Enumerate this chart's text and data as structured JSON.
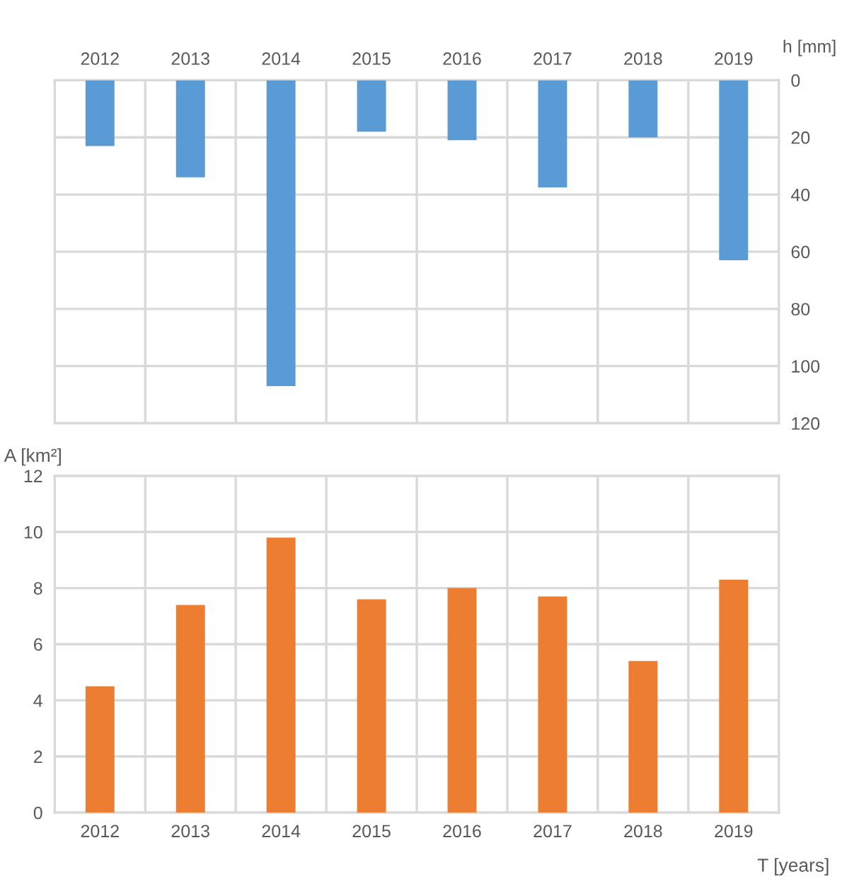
{
  "chart_data": [
    {
      "type": "bar",
      "ylabel": "h [mm]",
      "categories": [
        "2012",
        "2013",
        "2014",
        "2015",
        "2016",
        "2017",
        "2018",
        "2019"
      ],
      "series": [
        {
          "color": "#5b9bd5",
          "values": [
            23,
            34,
            107,
            18,
            21,
            37.5,
            20,
            63
          ]
        }
      ],
      "ylim": [
        120,
        0
      ],
      "yticks": [
        0,
        20,
        40,
        60,
        80,
        100,
        120
      ],
      "grid": true
    },
    {
      "type": "bar",
      "ylabel": "A [km²]",
      "xlabel": "T [years]",
      "categories": [
        "2012",
        "2013",
        "2014",
        "2015",
        "2016",
        "2017",
        "2018",
        "2019"
      ],
      "series": [
        {
          "color": "#ed7d31",
          "values": [
            4.5,
            7.4,
            9.8,
            7.6,
            8.0,
            7.7,
            5.4,
            8.3
          ]
        }
      ],
      "ylim": [
        0,
        12
      ],
      "yticks": [
        0,
        2,
        4,
        6,
        8,
        10,
        12
      ],
      "grid": true
    }
  ]
}
